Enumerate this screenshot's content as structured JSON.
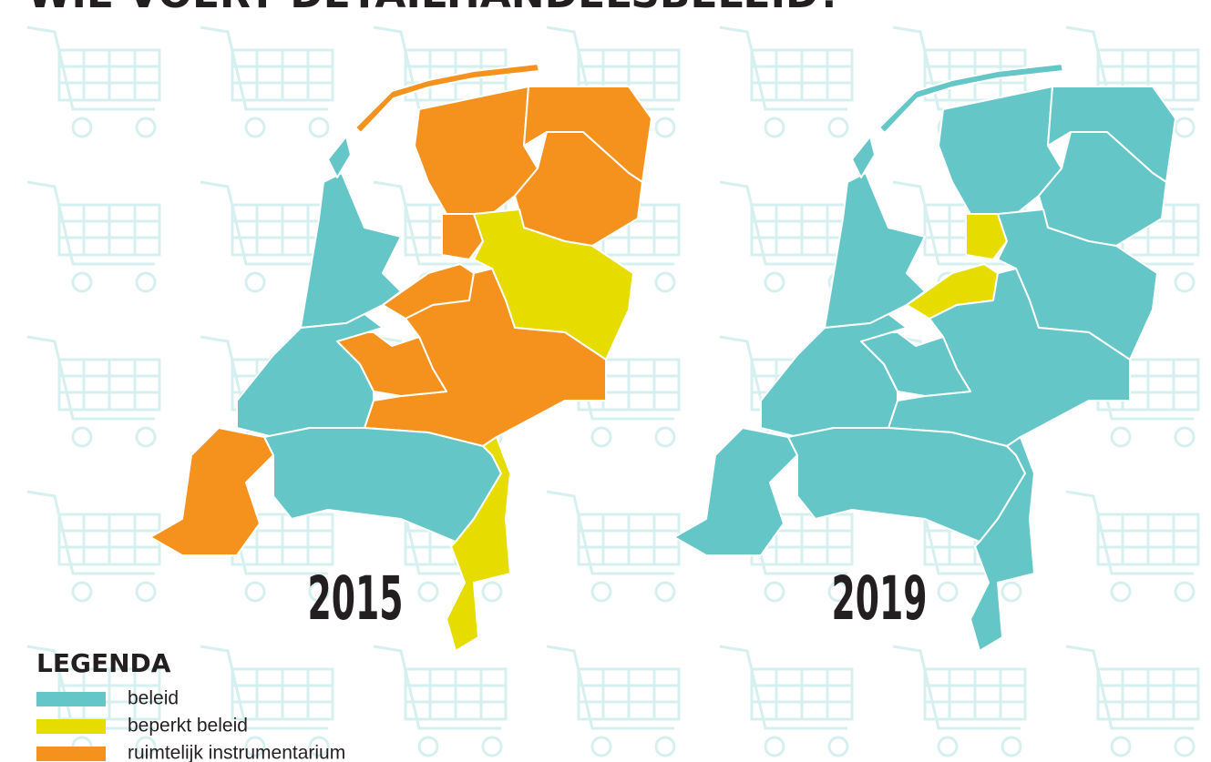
{
  "header": {
    "title": "WIE VOERT DETAILHANDELSBELEID?"
  },
  "maps": [
    {
      "year": "2015"
    },
    {
      "year": "2019"
    }
  ],
  "legend": {
    "title": "LEGENDA",
    "items": [
      {
        "label": "beleid",
        "color": "#64c6c7"
      },
      {
        "label": "beperkt beleid",
        "color": "#e6dc00"
      },
      {
        "label": "ruimtelijk instrumentarium",
        "color": "#f5921e"
      }
    ]
  }
}
